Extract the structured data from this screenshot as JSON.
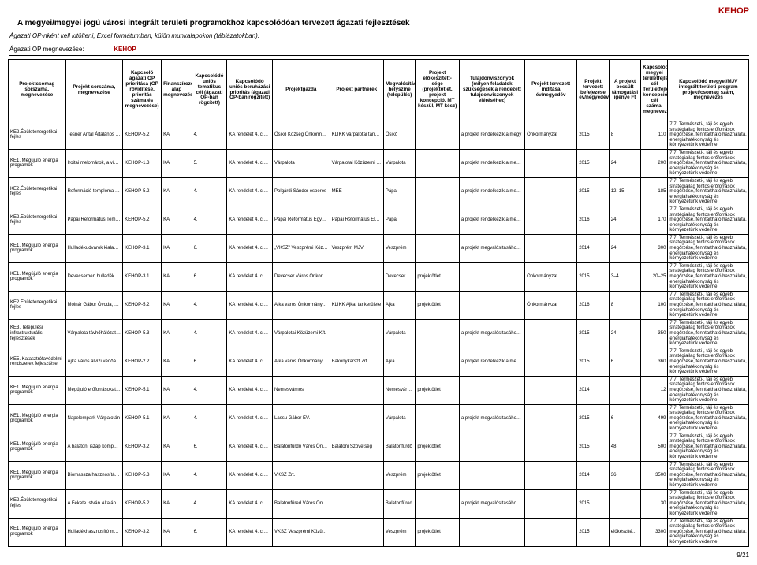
{
  "brand": "KEHOP",
  "title": "A megyei/megyei jogú városi integrált területi programokhoz kapcsolódóan tervezett ágazati fejlesztések",
  "subtitle": "Ágazati OP-nként kell kitölteni, Excel formátumban, külön munkalapokon (táblázatokban).",
  "opline_label": "Ágazati OP megnevezése:",
  "opline_value": "KEHOP",
  "pagenum": "9/21",
  "columns": [
    "Projektcsomag sorszáma, megnevezése",
    "Projekt sorszáma, megnevezése",
    "Kapcsoló ágazati OP prioritása (OP rövidítése, prioritás száma és megnevezése)",
    "Finanszírozó alap megnevezése",
    "Kapcsolódó uniós tematikus cél (ágazati OP-ban rögzített)",
    "Kapcsolódó uniós beruházási prioritás (ágazati OP-ban rögzített)",
    "Projektgazda",
    "Projekt partnerek",
    "Megvalósítás helyszíne (település)",
    "Projekt előkészített-sége (projektötlet, projekt koncepció, MT készül, MT kész)",
    "Tulajdonviszonyok (milyen feladatok szükségesek a rendezett tulajdonviszonyok eléréséhez)",
    "Projekt tervezett indítása év/negyedév",
    "Projekt tervezett befejezése év/negyedév",
    "A projekt becsült támogatási igénye Ft",
    "Kapcsolódó megyei területfejlesztési cél    Területfejlesztési koncepció cél száma, megnevezése",
    "Kapcsolódó megyei/MJV integrált területi program projekt/csomag szám, megnevezés"
  ],
  "goal_text": "7.7. Természeti-, táji és egyéb stratégiailag fontos erőforrások megőrzése, fenntartható használata, energiahatékonyság és környezetünk védelme",
  "rows": [
    {
      "c0": "KE2.Épületenergetikai fejles",
      "c1": "Tesner Antal Általános Iskol",
      "c2": "KEHOP-5.2",
      "c3": "KA",
      "c4": "4.",
      "c5": "KA rendelet 4. cikk a) iii.",
      "c6": "Ősikő Község Önkormányzata",
      "c7": "KLIKK várpalotai tankerület",
      "c8": "Ősikő",
      "c9": "",
      "c10": "a projekt rendelkezik a megy",
      "c11": "Önkormányzat",
      "c12": "2015",
      "c13": "8",
      "c14": "110"
    },
    {
      "c0": "KE1. Megújuló energia programok",
      "c1": "Iroitai melomárok, a víztáro",
      "c2": "KEHOP-1.3",
      "c3": "KA",
      "c4": "5.",
      "c5": "KA rendelet 4. cikk b) i.",
      "c6": "Várpalota",
      "c7": "Várpalotai Közüzemi Kft.",
      "c8": "Várpalota",
      "c9": "",
      "c10": "a projekt rendelkezik a megvalósításhoz szükséges tervek",
      "c11": "",
      "c12": "2015",
      "c13": "24",
      "c14": "200"
    },
    {
      "c0": "KE2.Épületenergetikai fejles",
      "c1": "Reformáció temploma a Luth",
      "c2": "KEHOP-5.2",
      "c3": "KA",
      "c4": "4.",
      "c5": "KA rendelet 4. cikk a) iii.",
      "c6": "Polgárdi Sándor esperes",
      "c7": "MEE",
      "c8": "Pápa",
      "c9": "",
      "c10": "a projekt rendelkezik a megvalósításhoz szükséges tervek",
      "c11": "",
      "c12": "2015",
      "c13": "12–15",
      "c14": "185"
    },
    {
      "c0": "KE2.Épületenergetikai fejles",
      "c1": "Pápai Református Templom",
      "c2": "KEHOP-5.2",
      "c3": "KA",
      "c4": "4.",
      "c5": "KA rendelet 4. cikk a) iii.",
      "c6": "Pápai Református Egyházköz",
      "c7": "Pápai Református Elklézsia A",
      "c8": "Pápa",
      "c9": "",
      "c10": "a projekt rendelkezik a megvalósításhoz szükséges tervek",
      "c11": "",
      "c12": "2016",
      "c13": "24",
      "c14": "170"
    },
    {
      "c0": "KE1. Megújuló energia programok",
      "c1": "Hulladékudvarok kialakítása",
      "c2": "KEHOP-3.1",
      "c3": "KA",
      "c4": "6.",
      "c5": "KA rendelet 4. cikk c) i.",
      "c6": "„VKSZ\" Veszprémi Közüzemi",
      "c7": "Veszprém MJV",
      "c8": "Veszprém",
      "c9": "",
      "c10": "a projekt megvalósításához szükséges tervek, engedélyek",
      "c11": "",
      "c12": "2014",
      "c13": "24",
      "c14": "300"
    },
    {
      "c0": "KE1. Megújuló energia programok",
      "c1": "Devecserben hulladékudvar",
      "c2": "KEHOP-3.1",
      "c3": "KA",
      "c4": "6.",
      "c5": "KA rendelet 4. cikk c) i.",
      "c6": "Devecser Város Önkormányz",
      "c7": "",
      "c8": "Devecser",
      "c9": "projektötlet",
      "c10": "",
      "c11": "Önkormányzat",
      "c12": "2015",
      "c13": "3–4",
      "c14": "20–25"
    },
    {
      "c0": "KE2.Épületenergetikai fejles",
      "c1": "Molnár Gábor Óvoda, Általán",
      "c2": "KEHOP-5.2",
      "c3": "KA",
      "c4": "4.",
      "c5": "KA rendelet 4. cikk a) iii.",
      "c6": "Ajka város Önkormányzata",
      "c7": "KLIKK Ajkai tankerülete",
      "c8": "Ajka",
      "c9": "projektötlet",
      "c10": "",
      "c11": "Önkormányzat",
      "c12": "2016",
      "c13": "8",
      "c14": "100"
    },
    {
      "c0": "KE3. Települési infrastrukturális fejlesztések",
      "c1": "Várpalota távhőhálózat fejle",
      "c2": "KEHOP-5.3",
      "c3": "KA",
      "c4": "4.",
      "c5": "KA rendelet 4. cikk a) iv.",
      "c6": "Várpalotai Közüzemi Kft.",
      "c7": "-",
      "c8": "Várpalota",
      "c9": "",
      "c10": "a projekt megvalósításához szükséges tervek, engedélyek",
      "c11": "",
      "c12": "2015",
      "c13": "24",
      "c14": "350"
    },
    {
      "c0": "KE5. Katasztrófavédelmi rendszerek fejlesztése",
      "c1": "Ajka város alvízi védőátok vé",
      "c2": "KEHOP-2.2",
      "c3": "KA",
      "c4": "6.",
      "c5": "KA rendelet 4. cikk c) ii.",
      "c6": "Ajka város Önkormányzata",
      "c7": "Bakonykarszt Zrt.",
      "c8": "Ajka",
      "c9": "",
      "c10": "a projekt rendelkezik a megvalósításhoz szükséges tervek",
      "c11": "",
      "c12": "2015",
      "c13": "6",
      "c14": "360"
    },
    {
      "c0": "KE1. Megújuló energia programok",
      "c1": "Megújuló erőforrásokat való",
      "c2": "KEHOP-5.1",
      "c3": "KA",
      "c4": "4.",
      "c5": "KA rendelet 4. cikk (a) i.",
      "c6": "Nemesvárnos",
      "c7": "",
      "c8": "Nemesvárnos",
      "c9": "projektötlet",
      "c10": "",
      "c11": "",
      "c12": "2014",
      "c13": "",
      "c14": "12",
      "c14b": "10"
    },
    {
      "c0": "KE1. Megújuló energia programok",
      "c1": "Napelempark Várpalotán",
      "c2": "KEHOP-5.1",
      "c3": "KA",
      "c4": "4.",
      "c5": "KA rendelet 4. cikk (a) i.",
      "c6": "Lassu Gábor EV.",
      "c7": "-",
      "c8": "Várpalota",
      "c9": "",
      "c10": "a projekt megvalósításához szükséges tervek, engedélyek",
      "c11": "",
      "c12": "2015",
      "c13": "6",
      "c14": "499"
    },
    {
      "c0": "KE1. Megújuló energia programok",
      "c1": "A balatoni iszap komposztál",
      "c2": "KEHOP-3.2",
      "c3": "KA",
      "c4": "6.",
      "c5": "KA rendelet 4. cikk c) iv.",
      "c6": "Balatonfürdő Város Önkormá",
      "c7": "Balatoni Szövetség",
      "c8": "Balatonfürdő",
      "c9": "projektötlet",
      "c10": "",
      "c11": "",
      "c12": "2015",
      "c13": "48",
      "c14": "500"
    },
    {
      "c0": "KE1. Megújuló energia programok",
      "c1": "Biomassza hasznosítás - Ve",
      "c2": "KEHOP-5.3",
      "c3": "KA",
      "c4": "4.",
      "c5": "KA rendelet 4. cikk a) iv.",
      "c6": "VKSZ Zrt.",
      "c7": "",
      "c8": "Veszprém",
      "c9": "projektötlet",
      "c10": "",
      "c11": "",
      "c12": "2014",
      "c13": "36",
      "c14": "3500"
    },
    {
      "c0": "KE2.Épületenergetikai fejles",
      "c1": "A Fekete István Általános Is",
      "c2": "KEHOP-5.2",
      "c3": "KA",
      "c4": "4.",
      "c5": "KA rendelet 4. cikk a) iii.",
      "c6": "Balatonfüred Város Önkorm",
      "c7": "",
      "c8": "Balatonfüred",
      "c9": "",
      "c10": "a projekt megvalósításához szükséges tervek",
      "c11": "",
      "c12": "2015",
      "c13": "",
      "c14": "30"
    },
    {
      "c0": "KE1. Megújuló energia programok",
      "c1": "Hulladékhasznosító mű - Ve",
      "c2": "KEHOP-3.2",
      "c3": "KA",
      "c4": "6.",
      "c5": "KA rendelet 4. cikk c) iv.",
      "c6": "VKSZ Veszprémi Közüzemi",
      "c7": "",
      "c8": "Veszprém",
      "c9": "projektötlet",
      "c10": "",
      "c11": "",
      "c12": "2015",
      "c13": "előkészítés: 24 hónap",
      "c14": "3300"
    }
  ]
}
